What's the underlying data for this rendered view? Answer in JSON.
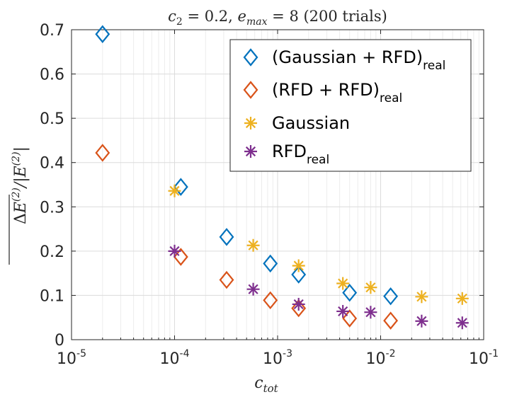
{
  "chart_data": {
    "type": "scatter",
    "title": "c2 = 0.2, emax = 8 (200 trials)",
    "xlabel": "ctot",
    "ylabel": "mean ΔE(2) / |E(2)|",
    "xscale": "log",
    "xlim": [
      1e-05,
      0.1
    ],
    "ylim": [
      0,
      0.7
    ],
    "x_ticks": [
      {
        "base": "10",
        "exp": "-5"
      },
      {
        "base": "10",
        "exp": "-4"
      },
      {
        "base": "10",
        "exp": "-3"
      },
      {
        "base": "10",
        "exp": "-2"
      },
      {
        "base": "10",
        "exp": "-1"
      }
    ],
    "y_ticks": [
      "0",
      "0.1",
      "0.2",
      "0.3",
      "0.4",
      "0.5",
      "0.6",
      "0.7"
    ],
    "grid": true,
    "legend_position": "top-right",
    "series": [
      {
        "name": "(Gaussian + RFD)",
        "subscript": "real",
        "marker": "diamond",
        "color": "#0072BD",
        "x": [
          2e-05,
          0.000115,
          0.00032,
          0.00085,
          0.0016,
          0.005,
          0.0125
        ],
        "y": [
          0.69,
          0.345,
          0.232,
          0.172,
          0.147,
          0.106,
          0.098
        ]
      },
      {
        "name": "(RFD + RFD)",
        "subscript": "real",
        "marker": "diamond",
        "color": "#D95319",
        "x": [
          2e-05,
          0.000115,
          0.00032,
          0.00085,
          0.0016,
          0.005,
          0.0125
        ],
        "y": [
          0.422,
          0.187,
          0.135,
          0.089,
          0.071,
          0.048,
          0.043
        ]
      },
      {
        "name": "Gaussian",
        "subscript": "",
        "marker": "asterisk",
        "color": "#EDB120",
        "x": [
          0.0001,
          0.00058,
          0.0016,
          0.0043,
          0.008,
          0.025,
          0.062
        ],
        "y": [
          0.336,
          0.213,
          0.167,
          0.127,
          0.118,
          0.097,
          0.093
        ]
      },
      {
        "name": "RFD",
        "subscript": "real",
        "marker": "asterisk",
        "color": "#7E2F8E",
        "x": [
          0.0001,
          0.00058,
          0.0016,
          0.0043,
          0.008,
          0.025,
          0.062
        ],
        "y": [
          0.2,
          0.114,
          0.08,
          0.064,
          0.062,
          0.042,
          0.038
        ]
      }
    ]
  }
}
